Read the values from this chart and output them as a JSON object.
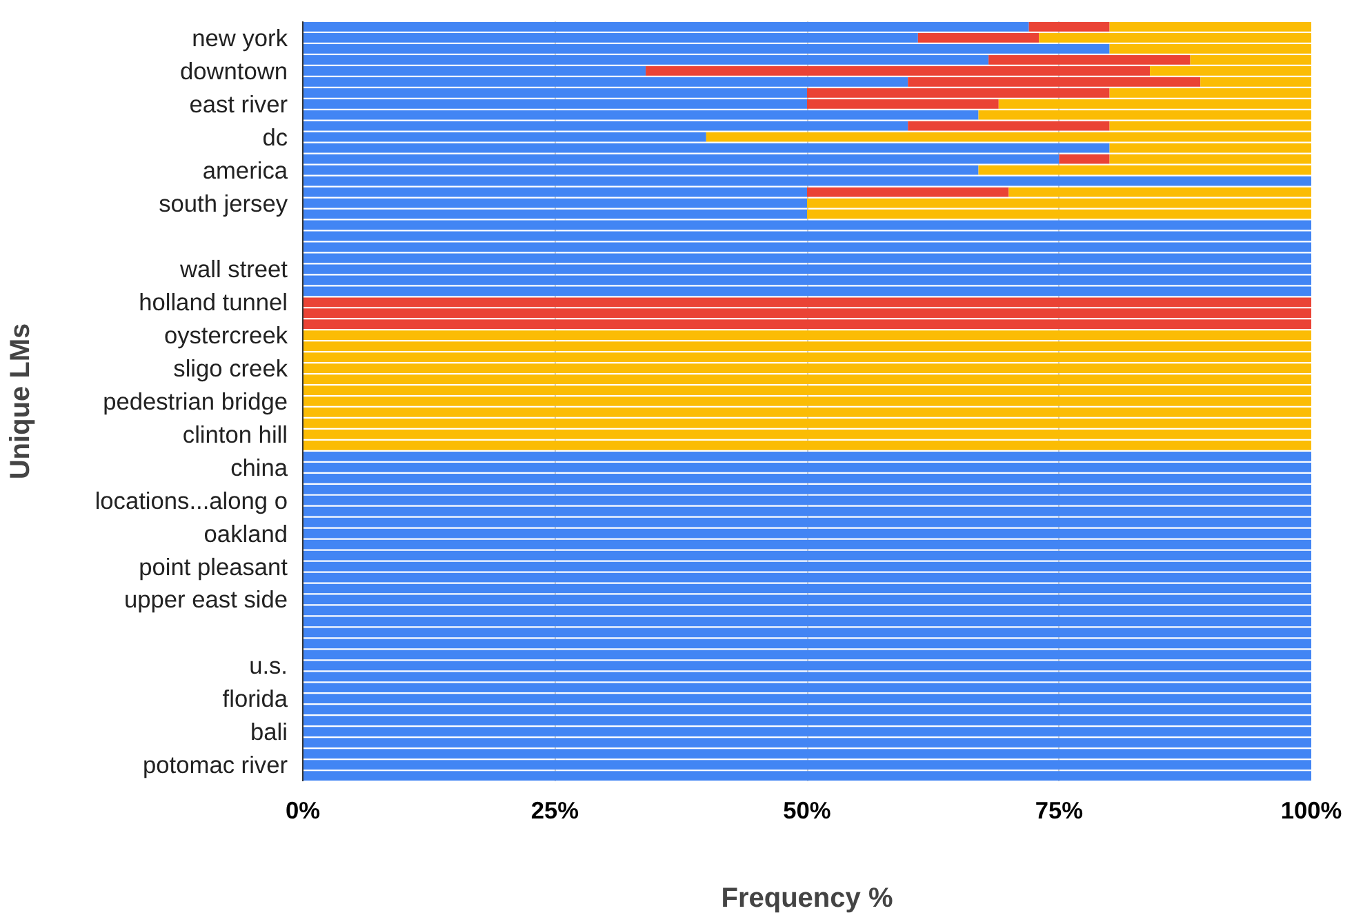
{
  "chart_data": {
    "type": "bar",
    "orientation": "horizontal",
    "stacked": true,
    "xlabel": "Frequency %",
    "ylabel": "Unique LMs",
    "categories": [
      null,
      "new york",
      null,
      null,
      "downtown",
      null,
      null,
      "east river",
      null,
      null,
      "dc",
      null,
      null,
      "america",
      null,
      null,
      "south jersey",
      null,
      null,
      null,
      null,
      null,
      "wall street",
      null,
      null,
      "holland tunnel",
      null,
      null,
      "oystercreek",
      null,
      null,
      "sligo creek",
      null,
      null,
      "pedestrian bridge",
      null,
      null,
      "clinton hill",
      null,
      null,
      "china",
      null,
      null,
      "locations...along o",
      null,
      null,
      "oakland",
      null,
      null,
      "point pleasant",
      null,
      null,
      "upper east side",
      null,
      null,
      null,
      null,
      null,
      "u.s.",
      null,
      null,
      "florida",
      null,
      null,
      "bali",
      null,
      null,
      "potomac river",
      null
    ],
    "series": [
      {
        "color": "#4285f4",
        "values": [
          72,
          61,
          80,
          68,
          34,
          60,
          50,
          50,
          67,
          60,
          40,
          80,
          75,
          67,
          100,
          50,
          50,
          50,
          100,
          100,
          100,
          100,
          100,
          100,
          100,
          0,
          0,
          0,
          0,
          0,
          0,
          0,
          0,
          0,
          0,
          0,
          0,
          0,
          0,
          100,
          100,
          100,
          100,
          100,
          100,
          100,
          100,
          100,
          100,
          100,
          100,
          100,
          100,
          100,
          100,
          100,
          100,
          100,
          100,
          100,
          100,
          100,
          100,
          100,
          100,
          100,
          100,
          100,
          100
        ]
      },
      {
        "color": "#ea4335",
        "values": [
          8,
          12,
          0,
          20,
          50,
          29,
          30,
          19,
          0,
          20,
          0,
          0,
          5,
          0,
          0,
          20,
          0,
          0,
          0,
          0,
          0,
          0,
          0,
          0,
          0,
          100,
          100,
          100,
          0,
          0,
          0,
          0,
          0,
          0,
          0,
          0,
          0,
          0,
          0,
          0,
          0,
          0,
          0,
          0,
          0,
          0,
          0,
          0,
          0,
          0,
          0,
          0,
          0,
          0,
          0,
          0,
          0,
          0,
          0,
          0,
          0,
          0,
          0,
          0,
          0,
          0,
          0,
          0,
          0
        ]
      },
      {
        "color": "#fbbc04",
        "values": [
          20,
          27,
          20,
          12,
          16,
          11,
          20,
          31,
          33,
          20,
          60,
          20,
          20,
          33,
          0,
          30,
          50,
          50,
          0,
          0,
          0,
          0,
          0,
          0,
          0,
          0,
          0,
          0,
          100,
          100,
          100,
          100,
          100,
          100,
          100,
          100,
          100,
          100,
          100,
          0,
          0,
          0,
          0,
          0,
          0,
          0,
          0,
          0,
          0,
          0,
          0,
          0,
          0,
          0,
          0,
          0,
          0,
          0,
          0,
          0,
          0,
          0,
          0,
          0,
          0,
          0,
          0,
          0,
          0
        ]
      }
    ],
    "xlim": [
      0,
      100
    ],
    "xticks": [
      {
        "value": 0,
        "label": "0%"
      },
      {
        "value": 25,
        "label": "25%"
      },
      {
        "value": 50,
        "label": "50%"
      },
      {
        "value": 75,
        "label": "75%"
      },
      {
        "value": 100,
        "label": "100%"
      }
    ],
    "grid": "x"
  }
}
